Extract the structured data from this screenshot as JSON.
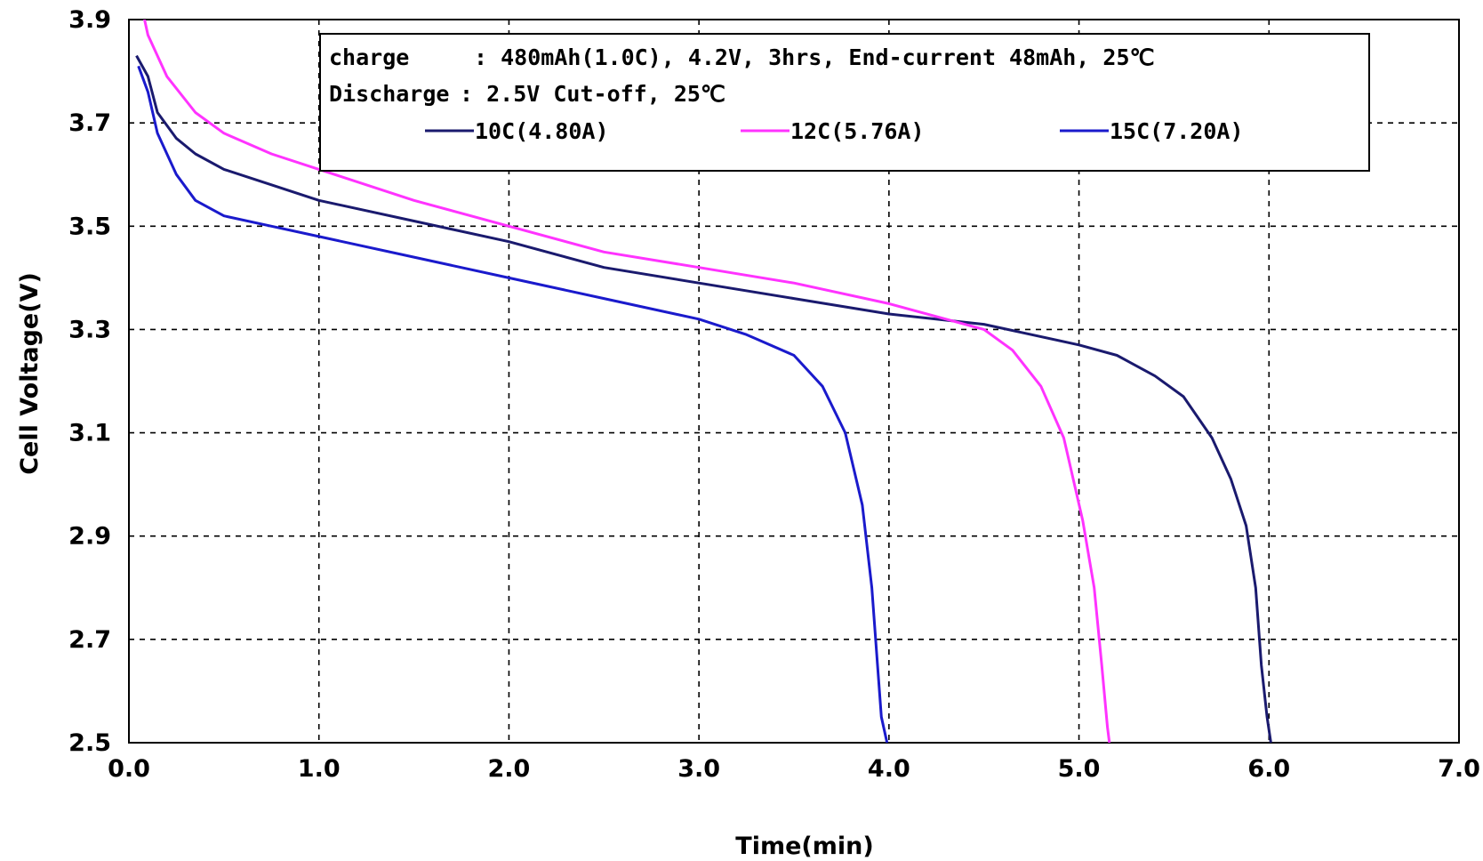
{
  "chart_data": {
    "type": "line",
    "xlabel": "Time(min)",
    "ylabel": "Cell Voltage(V)",
    "xlim": [
      0.0,
      7.0
    ],
    "ylim": [
      2.5,
      3.9
    ],
    "x_ticks": [
      "0.0",
      "1.0",
      "2.0",
      "3.0",
      "4.0",
      "5.0",
      "6.0",
      "7.0"
    ],
    "y_ticks": [
      "2.5",
      "2.7",
      "2.9",
      "3.1",
      "3.3",
      "3.5",
      "3.7",
      "3.9"
    ],
    "x_tick_values": [
      0,
      1,
      2,
      3,
      4,
      5,
      6,
      7
    ],
    "y_tick_values": [
      2.5,
      2.7,
      2.9,
      3.1,
      3.3,
      3.5,
      3.7,
      3.9
    ],
    "grid": true,
    "legend_position": "top",
    "notes": {
      "charge_label": "charge",
      "charge_text": ": 480mAh(1.0C),  4.2V,  3hrs,  End-current 48mAh, 25℃",
      "discharge_label": "Discharge",
      "discharge_text": ": 2.5V Cut-off, 25℃"
    },
    "series": [
      {
        "name": "10C(4.80A)",
        "color": "#1a1a6e",
        "points": [
          [
            0.04,
            3.83
          ],
          [
            0.1,
            3.79
          ],
          [
            0.15,
            3.72
          ],
          [
            0.25,
            3.67
          ],
          [
            0.35,
            3.64
          ],
          [
            0.5,
            3.61
          ],
          [
            0.75,
            3.58
          ],
          [
            1.0,
            3.55
          ],
          [
            1.5,
            3.51
          ],
          [
            2.0,
            3.47
          ],
          [
            2.5,
            3.42
          ],
          [
            3.0,
            3.39
          ],
          [
            3.5,
            3.36
          ],
          [
            4.0,
            3.33
          ],
          [
            4.5,
            3.31
          ],
          [
            5.0,
            3.27
          ],
          [
            5.2,
            3.25
          ],
          [
            5.4,
            3.21
          ],
          [
            5.55,
            3.17
          ],
          [
            5.7,
            3.09
          ],
          [
            5.8,
            3.01
          ],
          [
            5.88,
            2.92
          ],
          [
            5.93,
            2.8
          ],
          [
            5.96,
            2.65
          ],
          [
            5.99,
            2.55
          ],
          [
            6.01,
            2.5
          ]
        ]
      },
      {
        "name": "12C(5.76A)",
        "color": "#ff33ff",
        "points": [
          [
            0.07,
            3.92
          ],
          [
            0.1,
            3.87
          ],
          [
            0.2,
            3.79
          ],
          [
            0.35,
            3.72
          ],
          [
            0.5,
            3.68
          ],
          [
            0.75,
            3.64
          ],
          [
            1.0,
            3.61
          ],
          [
            1.5,
            3.55
          ],
          [
            2.0,
            3.5
          ],
          [
            2.5,
            3.45
          ],
          [
            3.0,
            3.42
          ],
          [
            3.5,
            3.39
          ],
          [
            4.0,
            3.35
          ],
          [
            4.3,
            3.32
          ],
          [
            4.5,
            3.3
          ],
          [
            4.65,
            3.26
          ],
          [
            4.8,
            3.19
          ],
          [
            4.92,
            3.09
          ],
          [
            5.02,
            2.93
          ],
          [
            5.08,
            2.8
          ],
          [
            5.12,
            2.65
          ],
          [
            5.15,
            2.53
          ],
          [
            5.16,
            2.5
          ]
        ]
      },
      {
        "name": "15C(7.20A)",
        "color": "#1a1acc",
        "points": [
          [
            0.05,
            3.81
          ],
          [
            0.1,
            3.76
          ],
          [
            0.15,
            3.68
          ],
          [
            0.25,
            3.6
          ],
          [
            0.35,
            3.55
          ],
          [
            0.5,
            3.52
          ],
          [
            0.75,
            3.5
          ],
          [
            1.0,
            3.48
          ],
          [
            1.5,
            3.44
          ],
          [
            2.0,
            3.4
          ],
          [
            2.5,
            3.36
          ],
          [
            3.0,
            3.32
          ],
          [
            3.25,
            3.29
          ],
          [
            3.5,
            3.25
          ],
          [
            3.65,
            3.19
          ],
          [
            3.77,
            3.1
          ],
          [
            3.86,
            2.96
          ],
          [
            3.91,
            2.8
          ],
          [
            3.94,
            2.65
          ],
          [
            3.96,
            2.55
          ],
          [
            3.99,
            2.5
          ]
        ]
      }
    ]
  }
}
